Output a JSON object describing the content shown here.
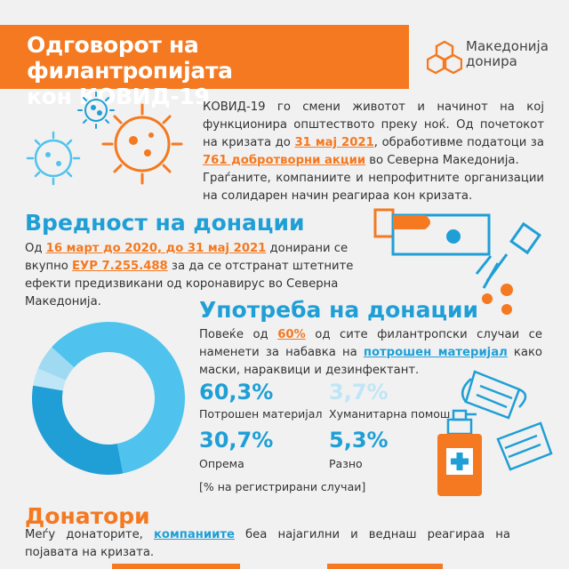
{
  "header": {
    "title_line1": "Одговорот на филантропијата",
    "title_line2": "кон КОВИД-19"
  },
  "logo": {
    "line1": "Македонија",
    "line2": "донира"
  },
  "intro": {
    "p1_a": "КОВИД-19 го смени животот и начинот на кој функционира општеството преку ноќ. Од почетокот на кризата до ",
    "p1_date": "31 мај 2021",
    "p1_b": ", обработивме податоци за ",
    "p1_count": "761 добротворни акции",
    "p1_c": " во Северна Македонија.",
    "p2": "Граѓаните, компаниите и непрофитните организации на солидарен начин реагираа кон кризата."
  },
  "value_section": {
    "heading": "Вредност на донации",
    "text_a": "Од ",
    "text_dates": "16 март до 2020, до 31 мај 2021",
    "text_b": " донирани се вкупно ",
    "text_amount": "ЕУР 7.255.488",
    "text_c": " за да се отстранат штетните ефекти предизвикани од коронавирус во Северна Македонија."
  },
  "usage_section": {
    "heading": "Употреба на донации",
    "text_a": "Повеќе од ",
    "text_pct": "60%",
    "text_b": " од сите филантропски случаи се наменети за набавка на ",
    "text_material": "потрошен материјал",
    "text_c": " како маски, нараквици и дезинфектант.",
    "stats": [
      {
        "value": "60,3%",
        "label": "Потрошен материјал",
        "color": "#1f9fd6"
      },
      {
        "value": "3,7%",
        "label": "Хуманитарна помош",
        "color": "#bfe6f6"
      },
      {
        "value": "30,7%",
        "label": "Опрема",
        "color": "#1f9fd6"
      },
      {
        "value": "5,3%",
        "label": "Разно",
        "color": "#1f9fd6"
      }
    ],
    "note": "[% на регистрирани случаи]"
  },
  "donors_section": {
    "heading": "Донатори",
    "text_a": "Меѓу донаторите, ",
    "text_companies": "компаниите",
    "text_b": " беа најагилни и веднаш реагираа на појавата на кризата."
  },
  "chart_data": {
    "type": "pie",
    "categories": [
      "Потрошен материјал",
      "Опрема",
      "Хуманитарна помош",
      "Разно"
    ],
    "values": [
      60.3,
      30.7,
      3.7,
      5.3
    ],
    "colors": [
      "#4fc3ee",
      "#1f9fd6",
      "#bfe6f6",
      "#9fdaf2"
    ]
  },
  "colors": {
    "accent": "#f47920",
    "blue": "#1f9fd6",
    "background": "#f1f1f1"
  }
}
